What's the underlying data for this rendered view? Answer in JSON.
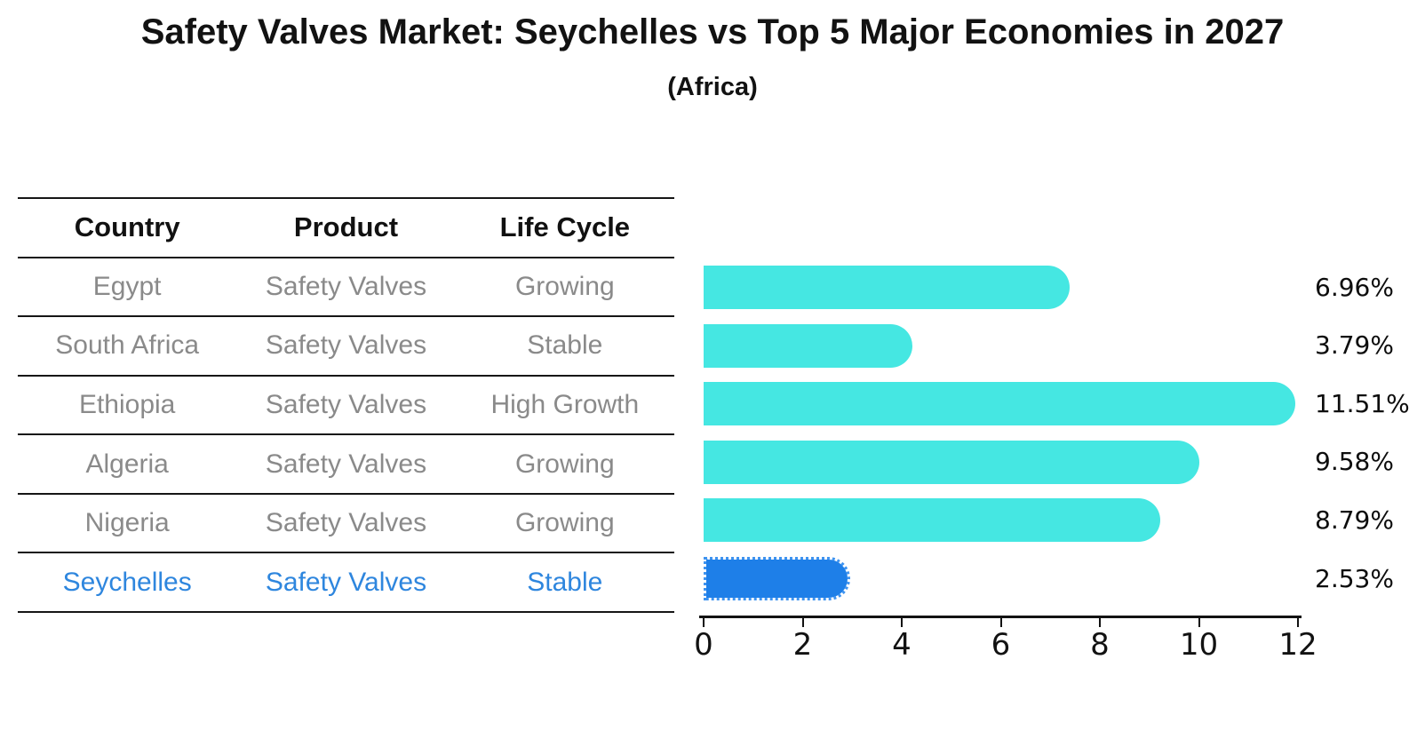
{
  "title": "Safety Valves Market: Seychelles vs Top 5 Major Economies in 2027",
  "subtitle": "(Africa)",
  "table": {
    "headers": [
      "Country",
      "Product",
      "Life Cycle"
    ]
  },
  "chart_data": {
    "type": "bar",
    "orientation": "horizontal",
    "title": "Safety Valves Market: Seychelles vs Top 5 Major Economies in 2027",
    "subtitle": "(Africa)",
    "xlabel": "",
    "ylabel": "",
    "xlim": [
      0,
      12
    ],
    "xticks": [
      0,
      2,
      4,
      6,
      8,
      10,
      12
    ],
    "grid": false,
    "legend": null,
    "categories": [
      "Egypt",
      "South Africa",
      "Ethiopia",
      "Algeria",
      "Nigeria",
      "Seychelles"
    ],
    "values": [
      6.96,
      3.79,
      11.51,
      9.58,
      8.79,
      2.53
    ],
    "rows": [
      {
        "country": "Egypt",
        "product": "Safety Valves",
        "life_cycle": "Growing",
        "value": 6.96,
        "value_label": "6.96%",
        "highlight": false
      },
      {
        "country": "South Africa",
        "product": "Safety Valves",
        "life_cycle": "Stable",
        "value": 3.79,
        "value_label": "3.79%",
        "highlight": false
      },
      {
        "country": "Ethiopia",
        "product": "Safety Valves",
        "life_cycle": "High Growth",
        "value": 11.51,
        "value_label": "11.51%",
        "highlight": false
      },
      {
        "country": "Algeria",
        "product": "Safety Valves",
        "life_cycle": "Growing",
        "value": 9.58,
        "value_label": "9.58%",
        "highlight": false
      },
      {
        "country": "Nigeria",
        "product": "Safety Valves",
        "life_cycle": "Growing",
        "value": 8.79,
        "value_label": "8.79%",
        "highlight": false
      },
      {
        "country": "Seychelles",
        "product": "Safety Valves",
        "life_cycle": "Stable",
        "value": 2.53,
        "value_label": "2.53%",
        "highlight": true
      }
    ],
    "colors": {
      "bar": "#45E7E2",
      "highlight_bar_fill": "#1E7FE8",
      "highlight_bar_edge": "#3E93F0",
      "highlight_text": "#2E86DE",
      "table_text": "#8A8A8A",
      "heading_text": "#111111",
      "axis": "#121212",
      "background": "#FFFFFF"
    }
  }
}
